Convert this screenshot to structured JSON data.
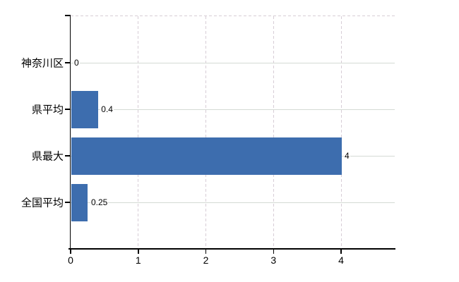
{
  "chart_data": {
    "type": "bar",
    "orientation": "horizontal",
    "title": "",
    "categories": [
      "神奈川区",
      "県平均",
      "県最大",
      "全国平均"
    ],
    "values": [
      0,
      0.4,
      4,
      0.25
    ],
    "value_labels": [
      "0",
      "0.4",
      "4",
      "0.25"
    ],
    "x_ticks": [
      0,
      1,
      2,
      3,
      4
    ],
    "x_tick_labels": [
      "0",
      "1",
      "2",
      "3",
      "4"
    ],
    "xlim": [
      0,
      4.8
    ],
    "grid": true,
    "legend": false,
    "colors": {
      "bar": "#3d6dae",
      "axis": "#000000",
      "vertical_gridline": "#d7cdd6",
      "horizontal_gridline": "#d4dad4",
      "text": "#000000",
      "background": "#ffffff"
    }
  }
}
